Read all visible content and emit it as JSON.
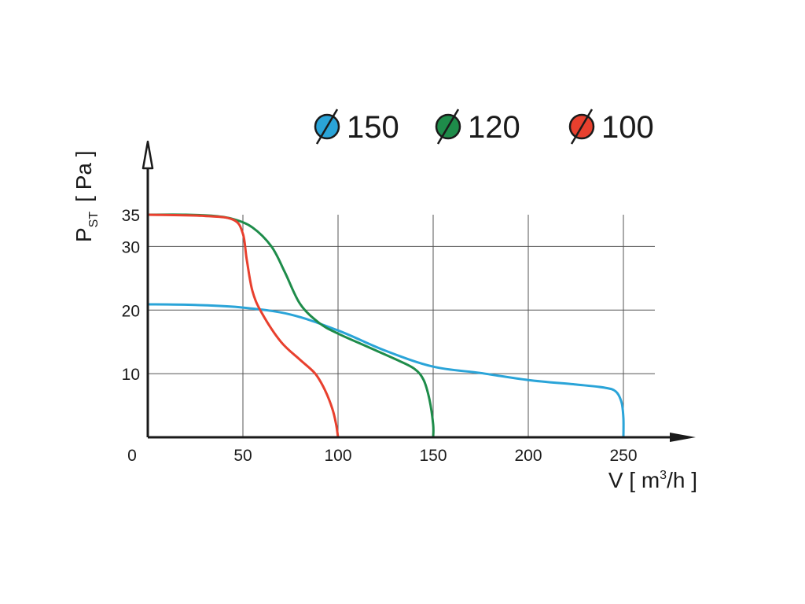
{
  "chart_data": {
    "type": "line",
    "x_axis": {
      "label_main": "V [ m",
      "label_sup": "3",
      "label_end": "/h ]",
      "min": 0,
      "max": 290,
      "ticks": [
        0,
        50,
        100,
        150,
        200,
        250
      ],
      "tick_labels": [
        "0",
        "50",
        "100",
        "150",
        "200",
        "250"
      ]
    },
    "y_axis": {
      "label_main": "P",
      "label_sub": "ST",
      "label_unit": "[ Pa ]",
      "min": 0,
      "max": 45,
      "ticks": [
        10,
        20,
        30,
        35
      ],
      "tick_labels": [
        "10",
        "20",
        "30",
        "35"
      ]
    },
    "grid": true,
    "legend_position": "top",
    "series": [
      {
        "name": "150",
        "color": "#2aa4d8",
        "points": [
          [
            0,
            20.9
          ],
          [
            25,
            20.8
          ],
          [
            50,
            20.4
          ],
          [
            75,
            19.3
          ],
          [
            100,
            16.8
          ],
          [
            125,
            13.6
          ],
          [
            150,
            11.1
          ],
          [
            175,
            10.1
          ],
          [
            200,
            9.0
          ],
          [
            225,
            8.3
          ],
          [
            240,
            7.8
          ],
          [
            246,
            7.2
          ],
          [
            249,
            5.5
          ],
          [
            250,
            3
          ],
          [
            250,
            0
          ]
        ]
      },
      {
        "name": "120",
        "color": "#1e8c4a",
        "points": [
          [
            0,
            35
          ],
          [
            20,
            35
          ],
          [
            35,
            34.8
          ],
          [
            45,
            34.3
          ],
          [
            55,
            33
          ],
          [
            65,
            30
          ],
          [
            72,
            26
          ],
          [
            80,
            21
          ],
          [
            90,
            18
          ],
          [
            100,
            16.3
          ],
          [
            115,
            14.3
          ],
          [
            130,
            12.3
          ],
          [
            140,
            10.8
          ],
          [
            145,
            9
          ],
          [
            148,
            6
          ],
          [
            150,
            2
          ],
          [
            150,
            0
          ]
        ]
      },
      {
        "name": "100",
        "color": "#e8402e",
        "points": [
          [
            0,
            35
          ],
          [
            30,
            34.8
          ],
          [
            45,
            34.2
          ],
          [
            50,
            32
          ],
          [
            52,
            28
          ],
          [
            55,
            23
          ],
          [
            60,
            19.5
          ],
          [
            70,
            15
          ],
          [
            80,
            12.2
          ],
          [
            88,
            10
          ],
          [
            93,
            7.5
          ],
          [
            97,
            4.5
          ],
          [
            99,
            2
          ],
          [
            100,
            0
          ]
        ]
      }
    ]
  }
}
